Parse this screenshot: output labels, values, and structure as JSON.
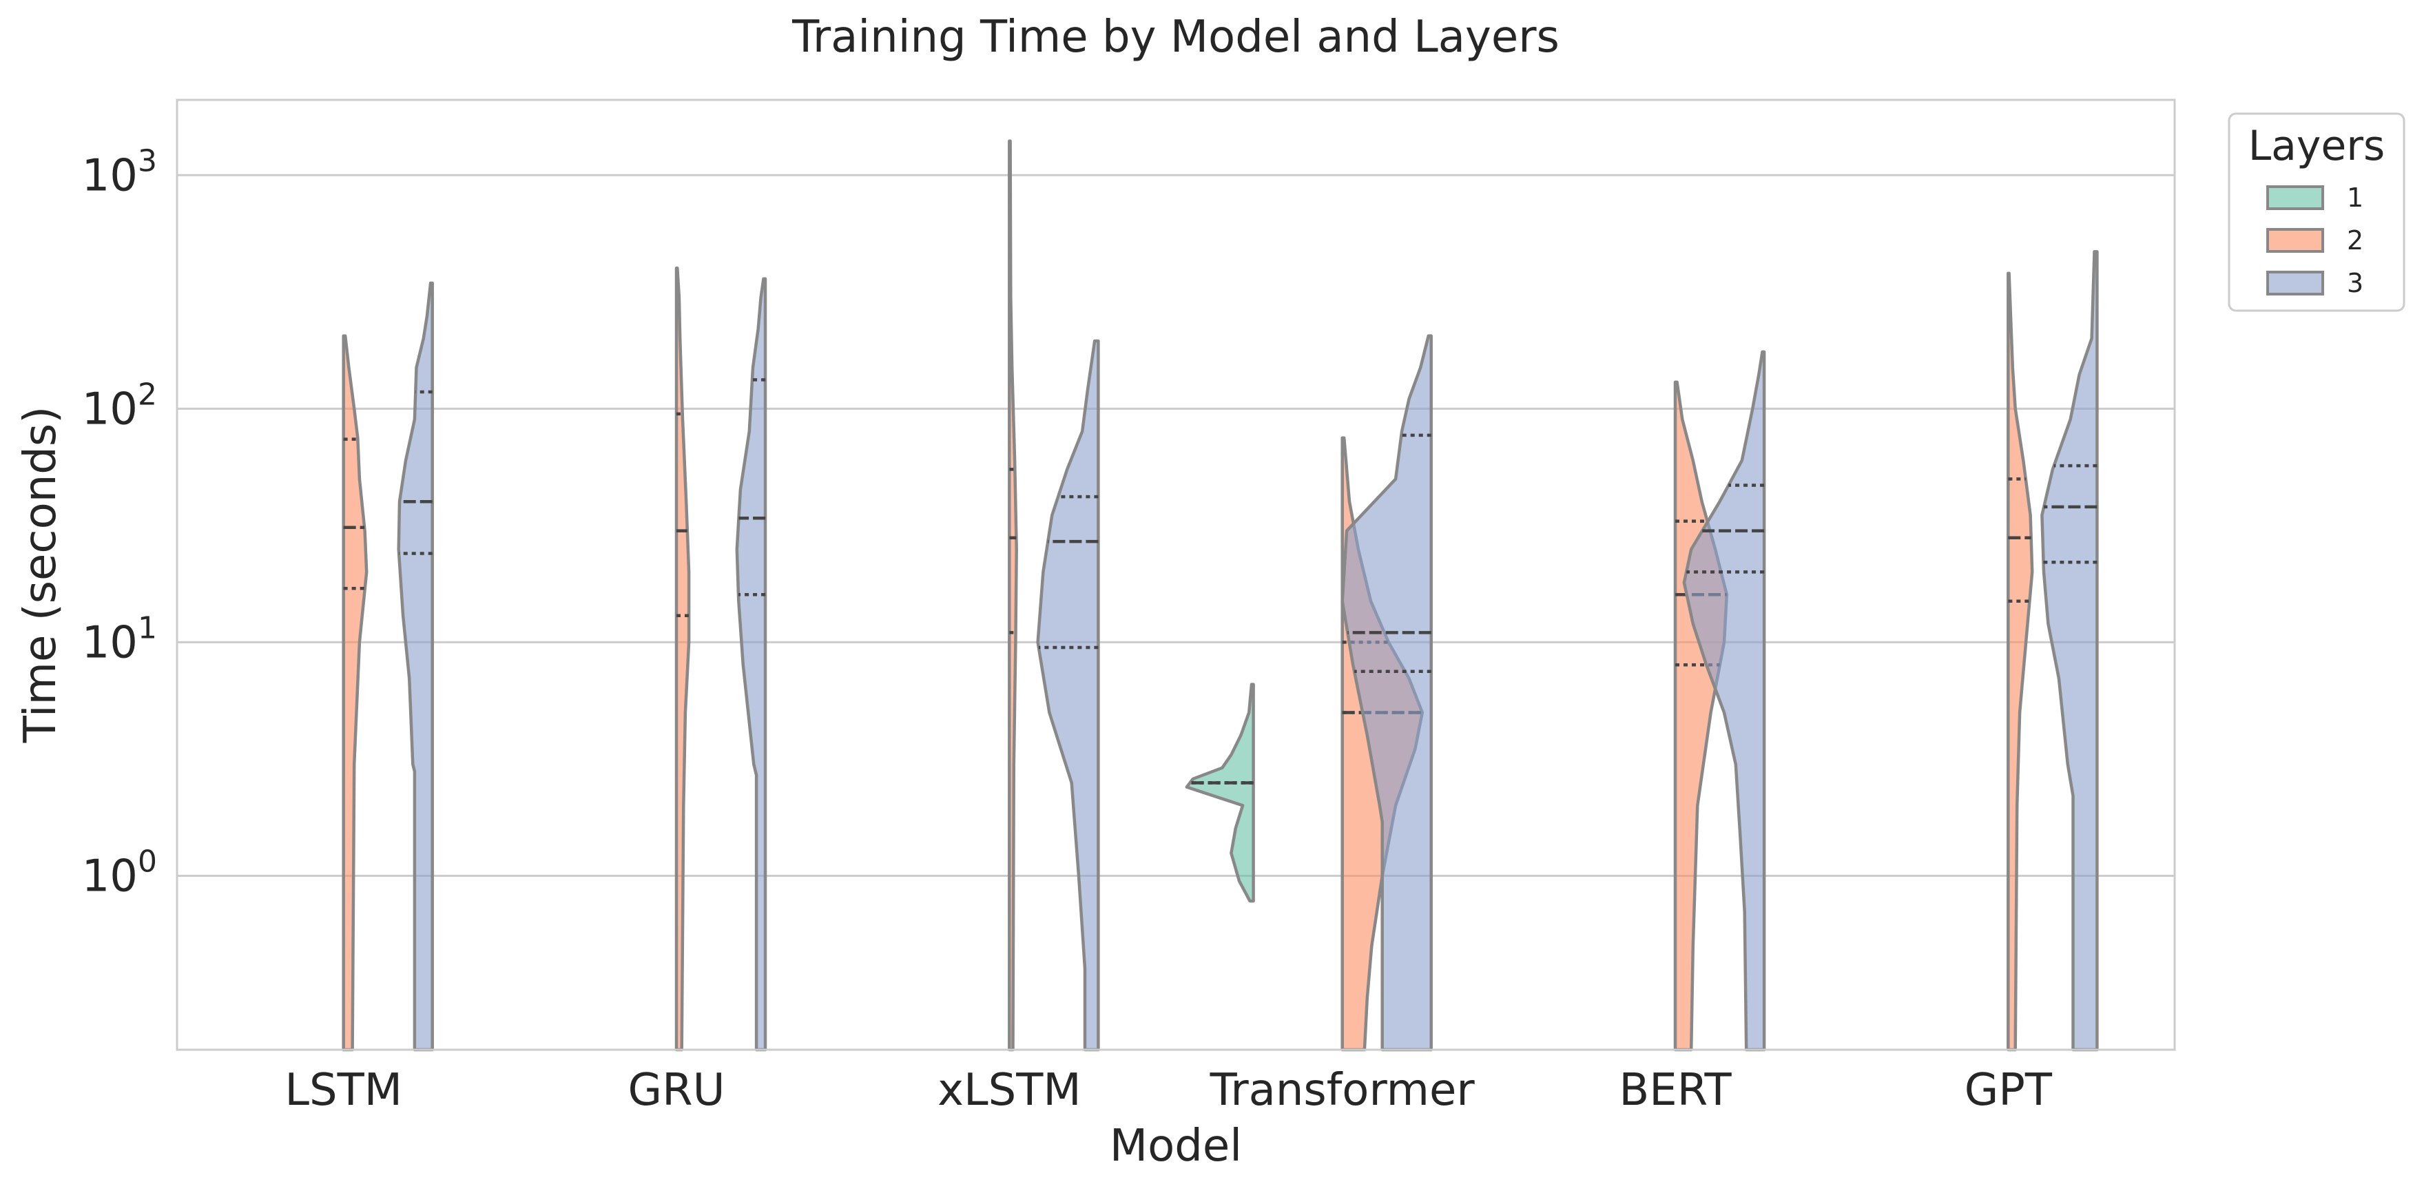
{
  "chart_data": {
    "type": "violin",
    "title": "Training Time by Model and Layers",
    "xlabel": "Model",
    "ylabel": "Time (seconds)",
    "yscale": "log",
    "ylim": [
      0.18,
      2100
    ],
    "yticks": [
      {
        "value": 1,
        "base": "10",
        "exp": "0"
      },
      {
        "value": 10,
        "base": "10",
        "exp": "1"
      },
      {
        "value": 100,
        "base": "10",
        "exp": "2"
      },
      {
        "value": 1000,
        "base": "10",
        "exp": "3"
      }
    ],
    "grid": true,
    "legend": {
      "title": "Layers",
      "position": "outside-top-right"
    },
    "categories": [
      "LSTM",
      "GRU",
      "xLSTM",
      "Transformer",
      "BERT",
      "GPT"
    ],
    "series": [
      {
        "name": "1",
        "color": "#66c2a5"
      },
      {
        "name": "2",
        "color": "#fc8d62"
      },
      {
        "name": "3",
        "color": "#8da0cb"
      }
    ],
    "violins": [
      {
        "category": "LSTM",
        "layers": "1",
        "present": false
      },
      {
        "category": "LSTM",
        "layers": "2",
        "side": "right",
        "ymin": 0.15,
        "ymax": 205,
        "quartiles": {
          "q1": 17,
          "median": 31,
          "q3": 74
        },
        "profile": [
          [
            0.15,
            0.1
          ],
          [
            3,
            0.12
          ],
          [
            10,
            0.18
          ],
          [
            20,
            0.26
          ],
          [
            30,
            0.24
          ],
          [
            50,
            0.18
          ],
          [
            75,
            0.16
          ],
          [
            100,
            0.12
          ],
          [
            150,
            0.06
          ],
          [
            205,
            0.02
          ]
        ]
      },
      {
        "category": "LSTM",
        "layers": "3",
        "side": "left",
        "ymin": 0.15,
        "ymax": 345,
        "quartiles": {
          "q1": 24,
          "median": 40,
          "q3": 118
        },
        "profile": [
          [
            0.15,
            0.2
          ],
          [
            2.8,
            0.2
          ],
          [
            3,
            0.22
          ],
          [
            7,
            0.26
          ],
          [
            13,
            0.33
          ],
          [
            25,
            0.38
          ],
          [
            40,
            0.37
          ],
          [
            60,
            0.3
          ],
          [
            90,
            0.2
          ],
          [
            150,
            0.18
          ],
          [
            200,
            0.1
          ],
          [
            250,
            0.06
          ],
          [
            345,
            0.02
          ]
        ]
      },
      {
        "category": "GRU",
        "layers": "1",
        "present": false
      },
      {
        "category": "GRU",
        "layers": "2",
        "side": "right",
        "ymin": 0.15,
        "ymax": 400,
        "quartiles": {
          "q1": 13,
          "median": 30,
          "q3": 95
        },
        "profile": [
          [
            0.15,
            0.06
          ],
          [
            2,
            0.08
          ],
          [
            5,
            0.1
          ],
          [
            10,
            0.14
          ],
          [
            20,
            0.14
          ],
          [
            40,
            0.11
          ],
          [
            90,
            0.07
          ],
          [
            200,
            0.04
          ],
          [
            300,
            0.03
          ],
          [
            400,
            0.01
          ]
        ]
      },
      {
        "category": "GRU",
        "layers": "3",
        "side": "left",
        "ymin": 0.15,
        "ymax": 360,
        "quartiles": {
          "q1": 16,
          "median": 34,
          "q3": 133
        },
        "profile": [
          [
            0.15,
            0.1
          ],
          [
            2.7,
            0.1
          ],
          [
            3,
            0.13
          ],
          [
            8,
            0.25
          ],
          [
            15,
            0.3
          ],
          [
            25,
            0.32
          ],
          [
            45,
            0.28
          ],
          [
            80,
            0.18
          ],
          [
            150,
            0.14
          ],
          [
            220,
            0.08
          ],
          [
            300,
            0.05
          ],
          [
            360,
            0.02
          ]
        ]
      },
      {
        "category": "xLSTM",
        "layers": "1",
        "present": false
      },
      {
        "category": "xLSTM",
        "layers": "2",
        "side": "right",
        "ymin": 0.15,
        "ymax": 1400,
        "quartiles": {
          "q1": 11,
          "median": 28,
          "q3": 55
        },
        "profile": [
          [
            0.15,
            0.04
          ],
          [
            3,
            0.05
          ],
          [
            10,
            0.07
          ],
          [
            25,
            0.08
          ],
          [
            60,
            0.06
          ],
          [
            150,
            0.03
          ],
          [
            300,
            0.015
          ],
          [
            1400,
            0.01
          ]
        ]
      },
      {
        "category": "xLSTM",
        "layers": "3",
        "side": "left",
        "ymin": 0.15,
        "ymax": 195,
        "quartiles": {
          "q1": 9.5,
          "median": 27,
          "q3": 42
        },
        "profile": [
          [
            0.15,
            0.15
          ],
          [
            0.4,
            0.15
          ],
          [
            1,
            0.22
          ],
          [
            2.5,
            0.3
          ],
          [
            5,
            0.55
          ],
          [
            10,
            0.68
          ],
          [
            20,
            0.62
          ],
          [
            35,
            0.52
          ],
          [
            55,
            0.35
          ],
          [
            80,
            0.18
          ],
          [
            120,
            0.12
          ],
          [
            195,
            0.04
          ]
        ]
      },
      {
        "category": "Transformer",
        "layers": "1",
        "side": "left",
        "ymin": 0.78,
        "ymax": 6.6,
        "quartiles": {
          "q1": 2.5,
          "median": 2.5,
          "q3": 2.5
        },
        "profile": [
          [
            0.78,
            0.04
          ],
          [
            0.95,
            0.16
          ],
          [
            1.25,
            0.25
          ],
          [
            1.6,
            0.2
          ],
          [
            2.0,
            0.12
          ],
          [
            2.4,
            0.75
          ],
          [
            2.6,
            0.68
          ],
          [
            2.9,
            0.35
          ],
          [
            3.3,
            0.25
          ],
          [
            4.0,
            0.14
          ],
          [
            5.0,
            0.05
          ],
          [
            6.6,
            0.02
          ]
        ]
      },
      {
        "category": "Transformer",
        "layers": "2",
        "side": "right",
        "ymin": 0.15,
        "ymax": 75,
        "quartiles": {
          "q1": 5,
          "median": 5,
          "q3": 10
        },
        "profile": [
          [
            0.15,
            0.25
          ],
          [
            0.3,
            0.28
          ],
          [
            0.5,
            0.33
          ],
          [
            1,
            0.45
          ],
          [
            2,
            0.6
          ],
          [
            3.5,
            0.82
          ],
          [
            5,
            0.9
          ],
          [
            7,
            0.75
          ],
          [
            10,
            0.52
          ],
          [
            15,
            0.32
          ],
          [
            25,
            0.18
          ],
          [
            40,
            0.08
          ],
          [
            75,
            0.02
          ]
        ]
      },
      {
        "category": "Transformer",
        "layers": "3",
        "side": "left",
        "ymin": 0.15,
        "ymax": 205,
        "quartiles": {
          "q1": 7.5,
          "median": 11,
          "q3": 77
        },
        "profile": [
          [
            0.15,
            0.55
          ],
          [
            1.7,
            0.55
          ],
          [
            2,
            0.58
          ],
          [
            4,
            0.72
          ],
          [
            8,
            0.88
          ],
          [
            15,
            1.0
          ],
          [
            30,
            0.95
          ],
          [
            50,
            0.4
          ],
          [
            80,
            0.33
          ],
          [
            110,
            0.25
          ],
          [
            150,
            0.12
          ],
          [
            205,
            0.03
          ]
        ]
      },
      {
        "category": "BERT",
        "layers": "1",
        "present": false
      },
      {
        "category": "BERT",
        "layers": "2",
        "side": "right",
        "ymin": 0.15,
        "ymax": 130,
        "quartiles": {
          "q1": 8,
          "median": 16,
          "q3": 33
        },
        "profile": [
          [
            0.15,
            0.18
          ],
          [
            0.5,
            0.2
          ],
          [
            2,
            0.25
          ],
          [
            5,
            0.4
          ],
          [
            10,
            0.55
          ],
          [
            16,
            0.58
          ],
          [
            25,
            0.45
          ],
          [
            40,
            0.3
          ],
          [
            60,
            0.2
          ],
          [
            90,
            0.08
          ],
          [
            130,
            0.02
          ]
        ]
      },
      {
        "category": "BERT",
        "layers": "3",
        "side": "left",
        "ymin": 0.15,
        "ymax": 175,
        "quartiles": {
          "q1": 20,
          "median": 30,
          "q3": 47
        },
        "profile": [
          [
            0.15,
            0.2
          ],
          [
            0.7,
            0.22
          ],
          [
            1.5,
            0.27
          ],
          [
            3,
            0.32
          ],
          [
            5,
            0.45
          ],
          [
            8,
            0.65
          ],
          [
            12,
            0.8
          ],
          [
            18,
            0.9
          ],
          [
            25,
            0.82
          ],
          [
            40,
            0.5
          ],
          [
            60,
            0.25
          ],
          [
            100,
            0.13
          ],
          [
            140,
            0.06
          ],
          [
            175,
            0.02
          ]
        ]
      },
      {
        "category": "GPT",
        "layers": "1",
        "present": false
      },
      {
        "category": "GPT",
        "layers": "2",
        "side": "right",
        "ymin": 0.15,
        "ymax": 380,
        "quartiles": {
          "q1": 15,
          "median": 28,
          "q3": 50
        },
        "profile": [
          [
            0.15,
            0.08
          ],
          [
            2,
            0.1
          ],
          [
            5,
            0.13
          ],
          [
            10,
            0.2
          ],
          [
            20,
            0.27
          ],
          [
            35,
            0.25
          ],
          [
            60,
            0.17
          ],
          [
            100,
            0.08
          ],
          [
            150,
            0.05
          ],
          [
            380,
            0.01
          ]
        ]
      },
      {
        "category": "GPT",
        "layers": "3",
        "side": "left",
        "ymin": 0.15,
        "ymax": 470,
        "quartiles": {
          "q1": 22,
          "median": 38,
          "q3": 57
        },
        "profile": [
          [
            0.15,
            0.27
          ],
          [
            2.2,
            0.27
          ],
          [
            3,
            0.33
          ],
          [
            7,
            0.43
          ],
          [
            12,
            0.55
          ],
          [
            20,
            0.6
          ],
          [
            35,
            0.62
          ],
          [
            55,
            0.5
          ],
          [
            90,
            0.3
          ],
          [
            140,
            0.2
          ],
          [
            200,
            0.06
          ],
          [
            470,
            0.03
          ]
        ]
      }
    ]
  }
}
